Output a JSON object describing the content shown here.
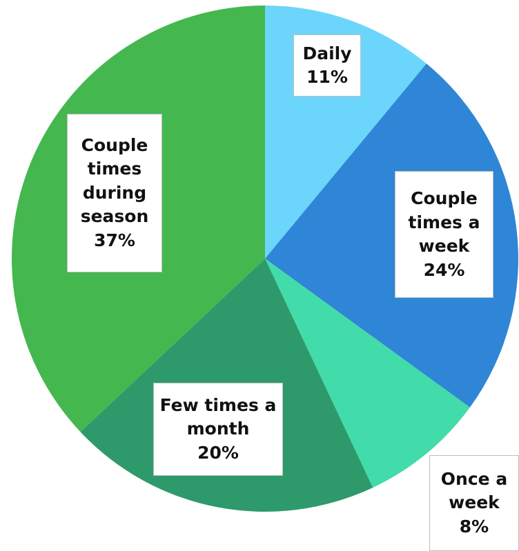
{
  "chart_data": {
    "type": "pie",
    "categories": [
      "Daily",
      "Couple times a week",
      "Once a week",
      "Few times a month",
      "Couple times during season"
    ],
    "values": [
      11,
      24,
      8,
      20,
      37
    ],
    "value_labels": [
      "11%",
      "24%",
      "8%",
      "20%",
      "37%"
    ],
    "colors": [
      "#6cd5fb",
      "#2f86d6",
      "#41dcaa",
      "#2e9a6c",
      "#45b74f"
    ]
  }
}
